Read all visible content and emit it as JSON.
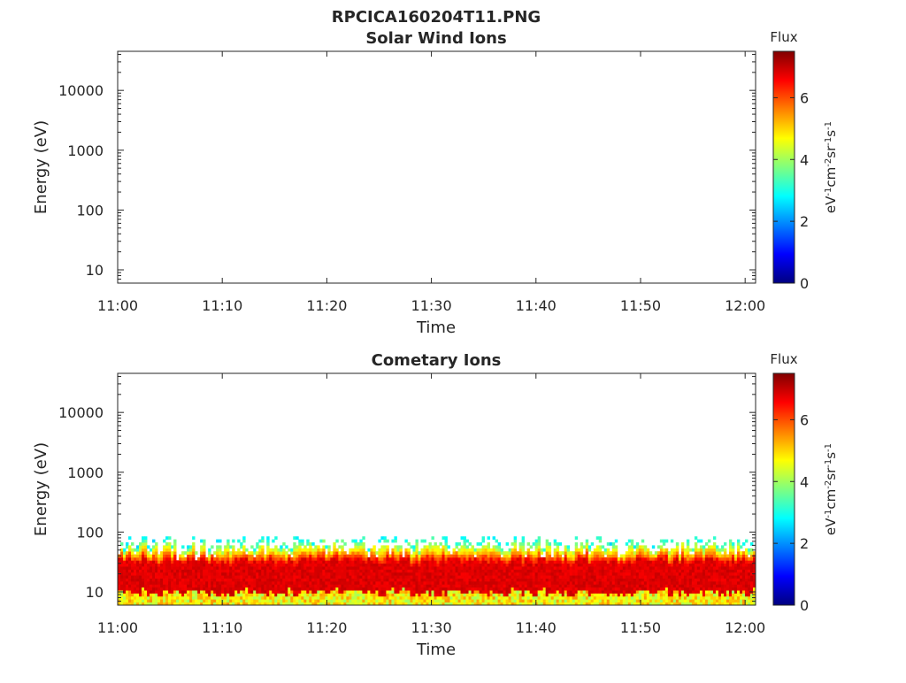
{
  "figure": {
    "title": "RPCICA160204T11.PNG"
  },
  "colorbar": {
    "title": "Flux",
    "unit_label": "eV-1cm-2sr-1s-1",
    "tick_labels": [
      "0",
      "2",
      "4",
      "6"
    ],
    "range": [
      0,
      7.5
    ],
    "colormap": "jet"
  },
  "chart_data": [
    {
      "type": "heatmap",
      "title": "Solar Wind Ions",
      "xlabel": "Time",
      "ylabel": "Energy (eV)",
      "x_tick_labels": [
        "11:00",
        "11:10",
        "11:20",
        "11:30",
        "11:40",
        "11:50",
        "12:00"
      ],
      "y_tick_labels": [
        "10",
        "100",
        "1000",
        "10000"
      ],
      "y_scale": "log",
      "ylim": [
        6,
        45000
      ],
      "xlim": [
        "11:00",
        "12:01"
      ],
      "data": "empty"
    },
    {
      "type": "heatmap",
      "title": "Cometary Ions",
      "xlabel": "Time",
      "ylabel": "Energy (eV)",
      "x_tick_labels": [
        "11:00",
        "11:10",
        "11:20",
        "11:30",
        "11:40",
        "11:50",
        "12:00"
      ],
      "y_tick_labels": [
        "10",
        "100",
        "1000",
        "10000"
      ],
      "y_scale": "log",
      "ylim": [
        6,
        45000
      ],
      "xlim": [
        "11:00",
        "12:01"
      ],
      "data": {
        "description_levels": "flux peak ~7 near 10-30 eV; falls to ~3 near 80 eV",
        "peak_energy_range_eV": [
          9,
          30
        ],
        "upper_extent_eV": 85,
        "peak_flux": 7,
        "edge_flux": 3
      }
    }
  ]
}
